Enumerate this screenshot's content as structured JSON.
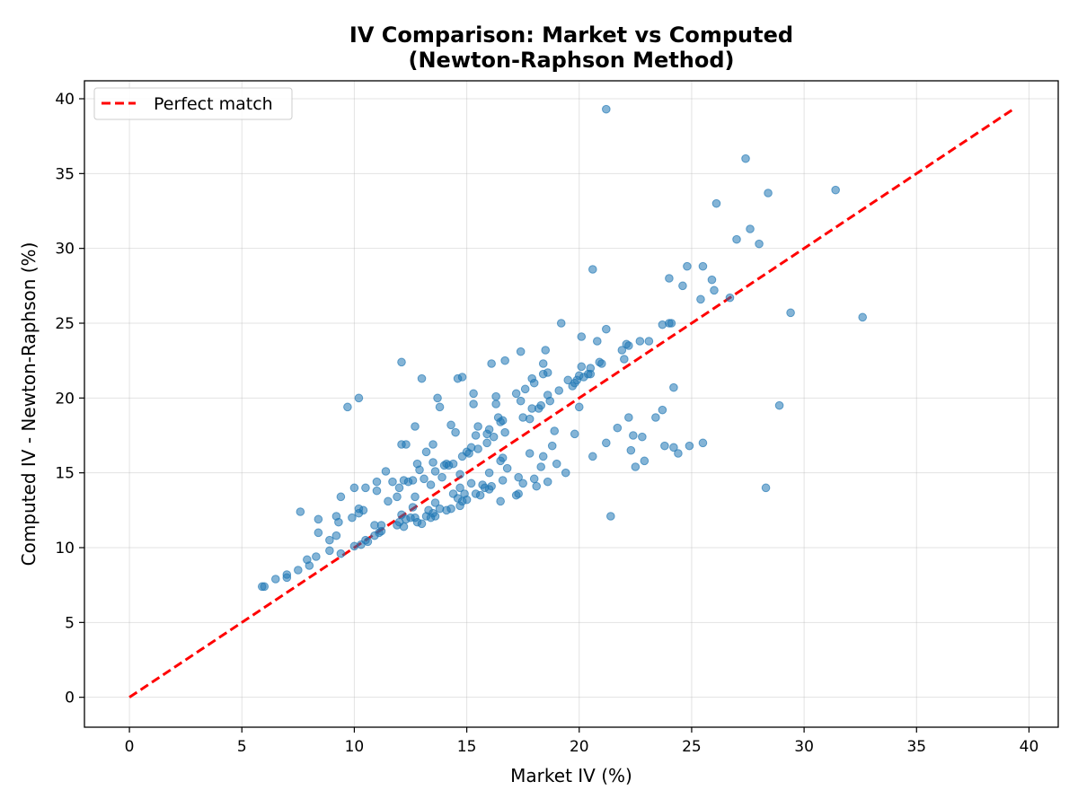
{
  "chart_data": {
    "type": "scatter",
    "title_line1": "IV Comparison: Market vs Computed",
    "title_line2": "(Newton-Raphson Method)",
    "xlabel": "Market IV (%)",
    "ylabel": "Computed IV - Newton-Raphson (%)",
    "xlim": [
      -2,
      41.3
    ],
    "ylim": [
      -2,
      41.2
    ],
    "xticks": [
      0,
      5,
      10,
      15,
      20,
      25,
      30,
      35,
      40
    ],
    "yticks": [
      0,
      5,
      10,
      15,
      20,
      25,
      30,
      35,
      40
    ],
    "grid": true,
    "legend_position": "upper-left",
    "legend": [
      {
        "label": "Perfect match",
        "style": "dashed",
        "color": "#ff0000"
      }
    ],
    "scatter_color": "#1f77b4",
    "reference_line": {
      "x": [
        0,
        39.3
      ],
      "y": [
        0,
        39.3
      ],
      "color": "#ff0000",
      "style": "dashed"
    },
    "points": [
      [
        5.9,
        7.4
      ],
      [
        6.0,
        7.4
      ],
      [
        6.5,
        7.9
      ],
      [
        7.0,
        8.2
      ],
      [
        7.0,
        8.0
      ],
      [
        7.5,
        8.5
      ],
      [
        7.6,
        12.4
      ],
      [
        7.9,
        9.2
      ],
      [
        8.0,
        8.8
      ],
      [
        8.3,
        9.4
      ],
      [
        8.4,
        11.9
      ],
      [
        8.4,
        11.0
      ],
      [
        8.9,
        10.5
      ],
      [
        8.9,
        9.8
      ],
      [
        9.2,
        12.1
      ],
      [
        9.2,
        10.8
      ],
      [
        9.3,
        11.7
      ],
      [
        9.4,
        13.4
      ],
      [
        9.4,
        9.6
      ],
      [
        9.7,
        19.4
      ],
      [
        9.9,
        12.0
      ],
      [
        10.0,
        14.0
      ],
      [
        10.0,
        10.1
      ],
      [
        10.2,
        12.3
      ],
      [
        10.2,
        12.6
      ],
      [
        10.2,
        20.0
      ],
      [
        10.3,
        10.2
      ],
      [
        10.4,
        12.5
      ],
      [
        10.5,
        14.0
      ],
      [
        10.5,
        10.5
      ],
      [
        10.6,
        10.4
      ],
      [
        10.9,
        10.8
      ],
      [
        10.9,
        11.5
      ],
      [
        11.0,
        13.8
      ],
      [
        11.0,
        14.4
      ],
      [
        11.1,
        11.0
      ],
      [
        11.2,
        11.1
      ],
      [
        11.2,
        11.5
      ],
      [
        11.4,
        15.1
      ],
      [
        11.5,
        13.1
      ],
      [
        11.7,
        14.4
      ],
      [
        11.9,
        11.5
      ],
      [
        11.9,
        13.4
      ],
      [
        12.0,
        11.7
      ],
      [
        12.0,
        14.0
      ],
      [
        12.1,
        12.2
      ],
      [
        12.1,
        22.4
      ],
      [
        12.1,
        16.9
      ],
      [
        12.2,
        11.4
      ],
      [
        12.2,
        14.5
      ],
      [
        12.3,
        11.9
      ],
      [
        12.3,
        16.9
      ],
      [
        12.4,
        14.4
      ],
      [
        12.5,
        12.0
      ],
      [
        12.6,
        12.7
      ],
      [
        12.6,
        14.5
      ],
      [
        12.7,
        18.1
      ],
      [
        12.7,
        12.0
      ],
      [
        12.7,
        13.4
      ],
      [
        12.8,
        15.6
      ],
      [
        12.8,
        11.7
      ],
      [
        12.9,
        15.2
      ],
      [
        13.0,
        11.6
      ],
      [
        13.0,
        21.3
      ],
      [
        13.1,
        14.6
      ],
      [
        13.2,
        12.1
      ],
      [
        13.2,
        16.4
      ],
      [
        13.3,
        12.5
      ],
      [
        13.4,
        12.0
      ],
      [
        13.4,
        14.2
      ],
      [
        13.5,
        15.7
      ],
      [
        13.5,
        16.9
      ],
      [
        13.5,
        12.3
      ],
      [
        13.6,
        13.0
      ],
      [
        13.6,
        15.1
      ],
      [
        13.6,
        12.1
      ],
      [
        13.7,
        20.0
      ],
      [
        13.8,
        19.4
      ],
      [
        13.8,
        12.6
      ],
      [
        13.9,
        14.7
      ],
      [
        14.0,
        15.5
      ],
      [
        14.1,
        15.6
      ],
      [
        14.1,
        12.5
      ],
      [
        14.2,
        15.5
      ],
      [
        14.3,
        18.2
      ],
      [
        14.3,
        12.6
      ],
      [
        14.4,
        13.6
      ],
      [
        14.4,
        15.6
      ],
      [
        14.5,
        17.7
      ],
      [
        14.6,
        13.3
      ],
      [
        14.6,
        21.3
      ],
      [
        14.7,
        14.9
      ],
      [
        14.7,
        14.0
      ],
      [
        14.7,
        12.8
      ],
      [
        14.8,
        13.1
      ],
      [
        14.8,
        21.4
      ],
      [
        14.8,
        16.1
      ],
      [
        14.9,
        13.6
      ],
      [
        15.0,
        13.2
      ],
      [
        15.0,
        16.4
      ],
      [
        15.1,
        16.3
      ],
      [
        15.2,
        16.7
      ],
      [
        15.2,
        14.3
      ],
      [
        15.3,
        19.6
      ],
      [
        15.3,
        20.3
      ],
      [
        15.4,
        17.5
      ],
      [
        15.4,
        13.6
      ],
      [
        15.5,
        16.6
      ],
      [
        15.5,
        18.1
      ],
      [
        15.6,
        13.5
      ],
      [
        15.7,
        14.2
      ],
      [
        15.8,
        14.0
      ],
      [
        15.9,
        17.0
      ],
      [
        15.9,
        17.6
      ],
      [
        16.0,
        13.9
      ],
      [
        16.0,
        15.0
      ],
      [
        16.0,
        17.9
      ],
      [
        16.1,
        22.3
      ],
      [
        16.1,
        14.1
      ],
      [
        16.2,
        17.4
      ],
      [
        16.3,
        19.6
      ],
      [
        16.3,
        20.1
      ],
      [
        16.4,
        18.7
      ],
      [
        16.5,
        13.1
      ],
      [
        16.5,
        18.4
      ],
      [
        16.5,
        15.8
      ],
      [
        16.6,
        14.5
      ],
      [
        16.6,
        16.0
      ],
      [
        16.6,
        18.5
      ],
      [
        16.7,
        22.5
      ],
      [
        16.7,
        17.7
      ],
      [
        16.8,
        15.3
      ],
      [
        17.2,
        13.5
      ],
      [
        17.2,
        20.3
      ],
      [
        17.3,
        14.7
      ],
      [
        17.3,
        13.6
      ],
      [
        17.4,
        19.8
      ],
      [
        17.4,
        23.1
      ],
      [
        17.5,
        18.7
      ],
      [
        17.5,
        14.3
      ],
      [
        17.6,
        20.6
      ],
      [
        17.8,
        16.3
      ],
      [
        17.8,
        18.6
      ],
      [
        17.9,
        21.3
      ],
      [
        17.9,
        19.3
      ],
      [
        18.0,
        14.6
      ],
      [
        18.0,
        21.0
      ],
      [
        18.1,
        14.1
      ],
      [
        18.2,
        19.3
      ],
      [
        18.3,
        15.4
      ],
      [
        18.3,
        19.5
      ],
      [
        18.4,
        21.6
      ],
      [
        18.4,
        22.3
      ],
      [
        18.4,
        16.1
      ],
      [
        18.5,
        23.2
      ],
      [
        18.6,
        14.4
      ],
      [
        18.6,
        21.7
      ],
      [
        18.6,
        20.2
      ],
      [
        18.7,
        19.8
      ],
      [
        18.8,
        16.8
      ],
      [
        18.9,
        17.8
      ],
      [
        19.0,
        15.6
      ],
      [
        19.1,
        20.5
      ],
      [
        19.2,
        25.0
      ],
      [
        19.4,
        15.0
      ],
      [
        19.5,
        21.2
      ],
      [
        19.7,
        20.8
      ],
      [
        19.8,
        21.0
      ],
      [
        19.8,
        17.6
      ],
      [
        19.9,
        21.2
      ],
      [
        20.0,
        21.5
      ],
      [
        20.0,
        19.4
      ],
      [
        20.1,
        24.1
      ],
      [
        20.1,
        22.1
      ],
      [
        20.2,
        21.4
      ],
      [
        20.4,
        21.6
      ],
      [
        20.5,
        21.6
      ],
      [
        20.5,
        22.0
      ],
      [
        20.6,
        16.1
      ],
      [
        20.6,
        28.6
      ],
      [
        20.8,
        23.8
      ],
      [
        20.9,
        22.4
      ],
      [
        21.0,
        22.3
      ],
      [
        21.2,
        17.0
      ],
      [
        21.2,
        24.6
      ],
      [
        21.2,
        39.3
      ],
      [
        21.4,
        12.1
      ],
      [
        21.7,
        18.0
      ],
      [
        21.9,
        23.2
      ],
      [
        22.0,
        22.6
      ],
      [
        22.1,
        23.6
      ],
      [
        22.2,
        18.7
      ],
      [
        22.2,
        23.5
      ],
      [
        22.3,
        16.5
      ],
      [
        22.4,
        17.5
      ],
      [
        22.5,
        15.4
      ],
      [
        22.7,
        23.8
      ],
      [
        22.8,
        17.4
      ],
      [
        22.9,
        15.8
      ],
      [
        23.1,
        23.8
      ],
      [
        23.4,
        18.7
      ],
      [
        23.7,
        19.2
      ],
      [
        23.7,
        24.9
      ],
      [
        23.8,
        16.8
      ],
      [
        24.0,
        25.0
      ],
      [
        24.0,
        28.0
      ],
      [
        24.1,
        25.0
      ],
      [
        24.2,
        20.7
      ],
      [
        24.2,
        16.7
      ],
      [
        24.4,
        16.3
      ],
      [
        24.6,
        27.5
      ],
      [
        24.8,
        28.8
      ],
      [
        24.9,
        16.8
      ],
      [
        25.4,
        26.6
      ],
      [
        25.5,
        17.0
      ],
      [
        25.5,
        28.8
      ],
      [
        25.9,
        27.9
      ],
      [
        26.0,
        27.2
      ],
      [
        26.1,
        33.0
      ],
      [
        26.7,
        26.7
      ],
      [
        27.0,
        30.6
      ],
      [
        27.4,
        36.0
      ],
      [
        27.6,
        31.3
      ],
      [
        28.0,
        30.3
      ],
      [
        28.3,
        14.0
      ],
      [
        28.4,
        33.7
      ],
      [
        28.9,
        19.5
      ],
      [
        29.4,
        25.7
      ],
      [
        31.4,
        33.9
      ],
      [
        32.6,
        25.4
      ]
    ]
  }
}
